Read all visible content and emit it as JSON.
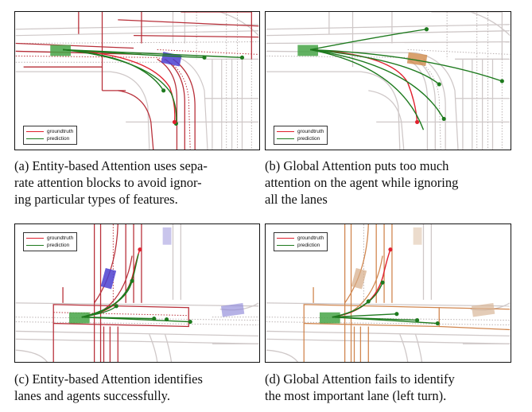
{
  "colors": {
    "groundtruth": "#e0202e",
    "prediction": "#1e7a1e",
    "road": "#c9c2c2",
    "lane_dash": "#b9b0b0",
    "attn_red": "#b8303a",
    "attn_orange": "#cc7a3c",
    "ego_agent": "#46a446",
    "agent_blue": "#4b3fd0",
    "agent_orange": "#d08a4a"
  },
  "legend": {
    "groundtruth": "groundtruth",
    "prediction": "prediction"
  },
  "captions": {
    "a": "(a) Entity-based Attention uses separate attention blocks to avoid ignoring particular types of features.",
    "b": "(b) Global Attention puts too much attention on the agent while ignoring all the lanes",
    "c": "(c) Entity-based Attention identifies lanes and agents successfully.",
    "d": "(d) Global Attention fails to identify the most important lane (left turn)."
  },
  "caption_lines": {
    "a": [
      "(a) Entity-based Attention uses sepa-",
      "rate attention blocks to avoid ignor-",
      "ing particular types of features."
    ],
    "b": [
      "(b) Global Attention puts too much",
      "attention on the agent while ignoring",
      "all the lanes"
    ],
    "c": [
      "(c) Entity-based Attention identifies",
      "lanes and agents successfully."
    ],
    "d": [
      "(d) Global Attention fails to identify",
      "the most important lane (left turn)."
    ]
  }
}
